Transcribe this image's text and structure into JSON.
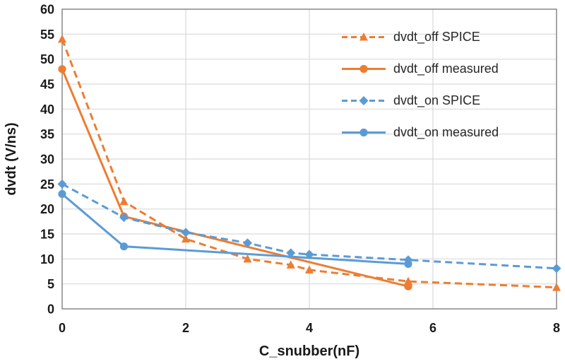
{
  "chart_data": {
    "type": "line",
    "title": "",
    "xlabel": "C_snubber(nF)",
    "ylabel": "dvdt (V/ns)",
    "xlim": [
      0,
      8
    ],
    "ylim": [
      0,
      60
    ],
    "xticks": [
      0,
      2,
      4,
      6,
      8
    ],
    "yticks": [
      0,
      5,
      10,
      15,
      20,
      25,
      30,
      35,
      40,
      45,
      50,
      55,
      60
    ],
    "grid": true,
    "legend_position": "top-right-inside",
    "series": [
      {
        "name": "dvdt_off SPICE",
        "color": "#ED7D31",
        "line_style": "dashed",
        "marker": "triangle",
        "points": [
          [
            0,
            54
          ],
          [
            1,
            21.5
          ],
          [
            2,
            14
          ],
          [
            3,
            10
          ],
          [
            3.7,
            8.8
          ],
          [
            4,
            7.8
          ],
          [
            5.6,
            5.5
          ],
          [
            8,
            4.3
          ]
        ]
      },
      {
        "name": "dvdt_off measured",
        "color": "#ED7D31",
        "line_style": "solid",
        "marker": "circle",
        "points": [
          [
            0,
            48
          ],
          [
            1,
            18.5
          ],
          [
            5.6,
            4.5
          ]
        ]
      },
      {
        "name": "dvdt_on SPICE",
        "color": "#5B9BD5",
        "line_style": "dashed",
        "marker": "diamond",
        "points": [
          [
            0,
            25
          ],
          [
            1,
            18.3
          ],
          [
            2,
            15.3
          ],
          [
            3,
            13.2
          ],
          [
            3.7,
            11.2
          ],
          [
            4,
            10.9
          ],
          [
            5.6,
            9.8
          ],
          [
            8,
            8.1
          ]
        ]
      },
      {
        "name": "dvdt_on measured",
        "color": "#5B9BD5",
        "line_style": "solid",
        "marker": "circle",
        "points": [
          [
            0,
            23
          ],
          [
            1,
            12.5
          ],
          [
            5.6,
            9
          ]
        ]
      }
    ],
    "colors": {
      "grid": "#D9D9D9",
      "axis": "#7F7F7F",
      "text": "#1A1A1A"
    }
  }
}
